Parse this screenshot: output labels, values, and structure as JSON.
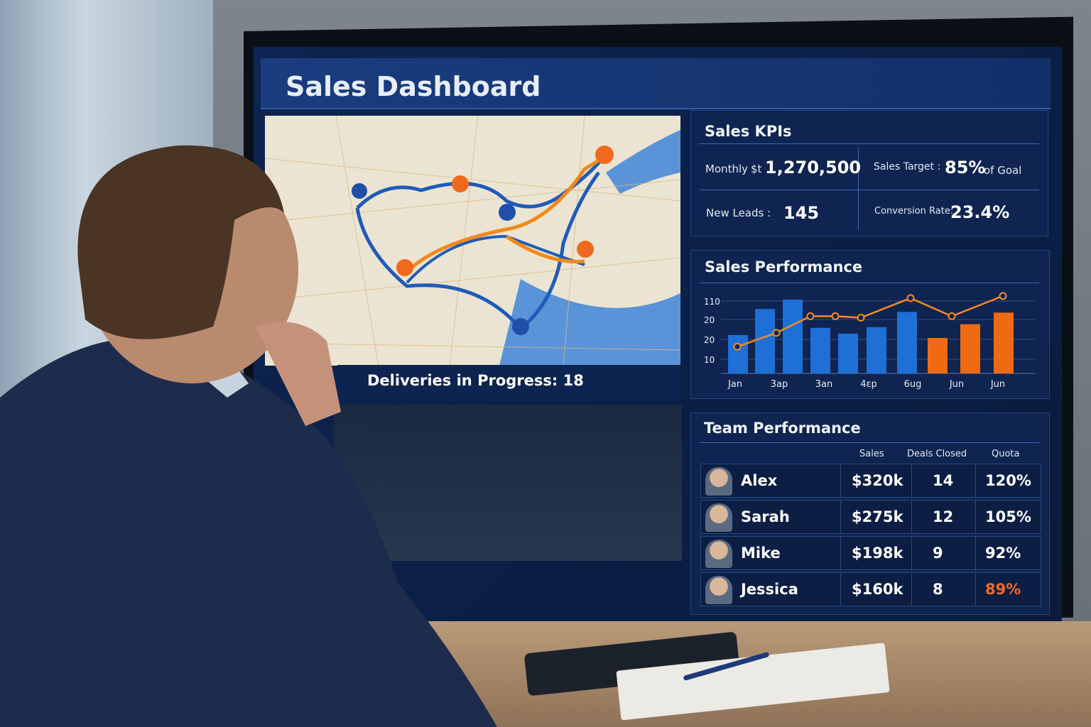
{
  "dashboard": {
    "title": "Sales Dashboard"
  },
  "map": {
    "deliveries_label": "Deliveries in Progress: 18",
    "route_colors": [
      "#1f5bb8",
      "#f08a1c"
    ],
    "pin_colors": {
      "blue": "#1f4fa8",
      "orange": "#ef6a1e"
    }
  },
  "kpis": {
    "title": "Sales KPIs",
    "monthly_label": "Monthly",
    "monthly_currency": "$t",
    "monthly_value": "1,270,500",
    "target_label": "Sales Target :",
    "target_value": "85%",
    "target_suffix": "of Goal",
    "leads_label": "New Leads :",
    "leads_value": "145",
    "conversion_label": "Conversion Rate:",
    "conversion_value": "23.4%"
  },
  "chart_data": {
    "type": "bar",
    "title": "Sales Performance",
    "categories": [
      "Jan",
      "",
      "3ap",
      "",
      "3an",
      "",
      "4εp",
      "6ug",
      "Jun",
      "Jun"
    ],
    "x_tick_labels": [
      "Jan",
      "3ap",
      "3an",
      "4εp",
      "6ug",
      "Jun",
      "Jun"
    ],
    "y_tick_labels": [
      "110",
      "20",
      "20",
      "10"
    ],
    "bar_levels_pct_of_top_gridline": [
      53,
      89,
      102,
      63,
      55,
      64,
      85,
      49,
      68,
      84
    ],
    "bar_colors": [
      "#1e6fd6",
      "#1e6fd6",
      "#1e6fd6",
      "#1e6fd6",
      "#1e6fd6",
      "#1e6fd6",
      "#1e6fd6",
      "#f06a14",
      "#f06a14",
      "#f06a14"
    ],
    "line_levels_pct_of_top_gridline": [
      37,
      56,
      79,
      79,
      77,
      104,
      79,
      107
    ],
    "line_color": "#f58a22",
    "grid": true
  },
  "team": {
    "title": "Team Performance",
    "headers": [
      "Sales",
      "Deals Closed",
      "Quota"
    ],
    "rows": [
      {
        "name": "Alex",
        "sales": "$320k",
        "deals": "14",
        "quota": "120%"
      },
      {
        "name": "Sarah",
        "sales": "$275k",
        "deals": "12",
        "quota": "105%"
      },
      {
        "name": "Mike",
        "sales": "$198k",
        "deals": "9",
        "quota": "92%"
      },
      {
        "name": "Jessica",
        "sales": "$160k",
        "deals": "8",
        "quota": "89%",
        "quota_color": "#f26a2a"
      }
    ]
  }
}
